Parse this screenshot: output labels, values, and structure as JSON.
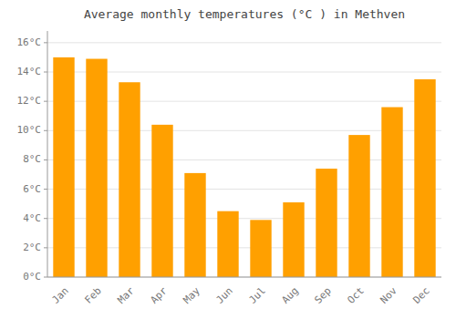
{
  "chart_data": {
    "type": "bar",
    "title": "Average monthly temperatures (°C ) in Methven",
    "categories": [
      "Jan",
      "Feb",
      "Mar",
      "Apr",
      "May",
      "Jun",
      "Jul",
      "Aug",
      "Sep",
      "Oct",
      "Nov",
      "Dec"
    ],
    "values": [
      15.0,
      14.9,
      13.3,
      10.4,
      7.1,
      4.5,
      3.9,
      5.1,
      7.4,
      9.7,
      11.6,
      13.5
    ],
    "color": "#FFA000",
    "ylim": [
      0,
      16.8
    ],
    "yticks": [
      {
        "value": 0,
        "label": "0°C"
      },
      {
        "value": 2,
        "label": "2°C"
      },
      {
        "value": 4,
        "label": "4°C"
      },
      {
        "value": 6,
        "label": "6°C"
      },
      {
        "value": 8,
        "label": "8°C"
      },
      {
        "value": 10,
        "label": "10°C"
      },
      {
        "value": 12,
        "label": "12°C"
      },
      {
        "value": 14,
        "label": "14°C"
      },
      {
        "value": 16,
        "label": "16°C"
      }
    ],
    "grid": true
  }
}
